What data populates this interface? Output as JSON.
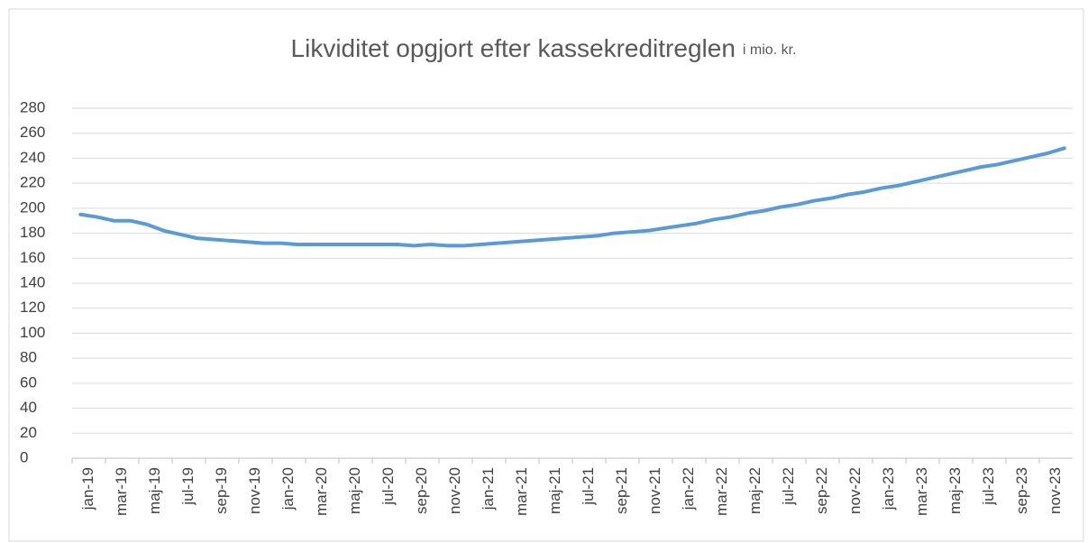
{
  "chart_data": {
    "type": "line",
    "title": "Likviditet opgjort efter kassekreditreglen",
    "subtitle": "i mio. kr.",
    "categories": [
      "jan-19",
      null,
      "mar-19",
      null,
      "maj-19",
      null,
      "jul-19",
      null,
      "sep-19",
      null,
      "nov-19",
      null,
      "jan-20",
      null,
      "mar-20",
      null,
      "maj-20",
      null,
      "jul-20",
      null,
      "sep-20",
      null,
      "nov-20",
      null,
      "jan-21",
      null,
      "mar-21",
      null,
      "maj-21",
      null,
      "jul-21",
      null,
      "sep-21",
      null,
      "nov-21",
      null,
      "jan-22",
      null,
      "mar-22",
      null,
      "maj-22",
      null,
      "jul-22",
      null,
      "sep-22",
      null,
      "nov-22",
      null,
      "jan-23",
      null,
      "mar-23",
      null,
      "maj-23",
      null,
      "jul-23",
      null,
      "sep-23",
      null,
      "nov-23",
      null
    ],
    "series": [
      {
        "color": "#5b9bd5",
        "values": [
          195,
          193,
          190,
          190,
          187,
          182,
          179,
          176,
          175,
          174,
          173,
          172,
          172,
          171,
          171,
          171,
          171,
          171,
          171,
          171,
          170,
          171,
          170,
          170,
          171,
          172,
          173,
          174,
          175,
          176,
          177,
          178,
          180,
          181,
          182,
          184,
          186,
          188,
          191,
          193,
          196,
          198,
          201,
          203,
          206,
          208,
          211,
          213,
          216,
          218,
          221,
          224,
          227,
          230,
          233,
          235,
          238,
          241,
          244,
          248
        ]
      }
    ],
    "ylim": [
      0,
      280
    ],
    "yticks": [
      0,
      20,
      40,
      60,
      80,
      100,
      120,
      140,
      160,
      180,
      200,
      220,
      240,
      260,
      280
    ],
    "grid": true
  }
}
